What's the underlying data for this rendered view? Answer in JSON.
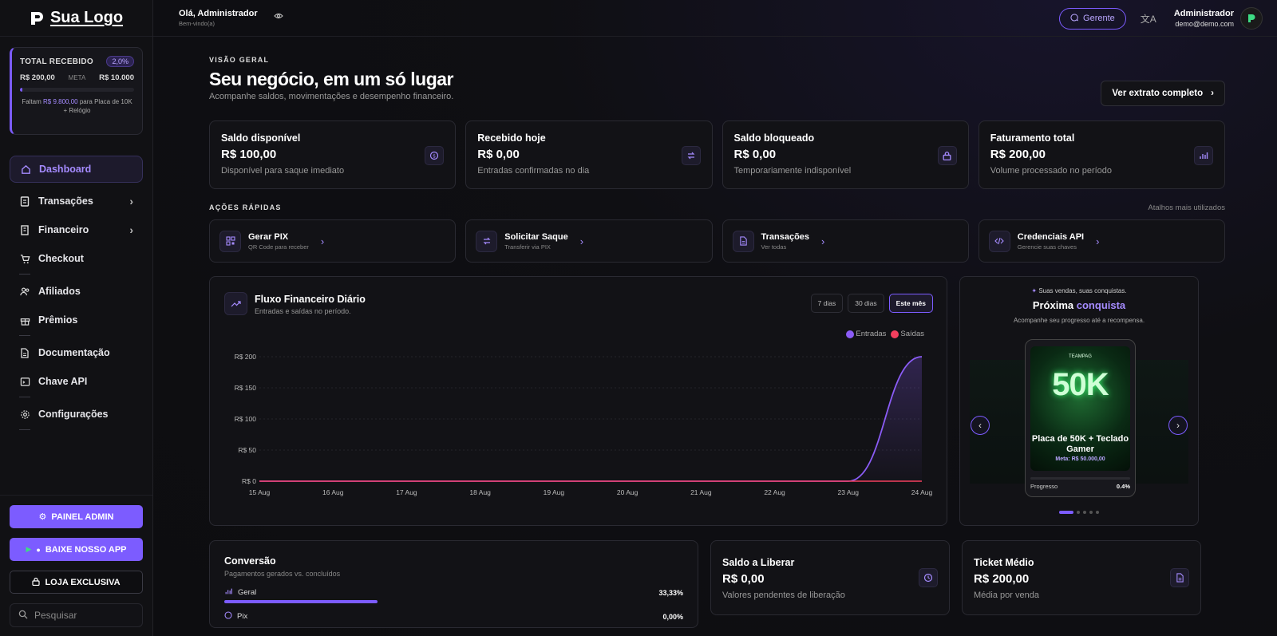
{
  "brand": {
    "logo_text": "Sua Logo"
  },
  "goal": {
    "title": "TOTAL RECEBIDO",
    "percent": "2,0%",
    "current": "R$ 200,00",
    "meta_label": "META",
    "target": "R$ 10.000",
    "progress_fraction": 0.02,
    "note_prefix": "Faltam",
    "note_amount": "R$ 9.800,00",
    "note_suffix": "para Placa de 10K + Relógio"
  },
  "nav": {
    "dashboard": "Dashboard",
    "transacoes": "Transações",
    "financeiro": "Financeiro",
    "checkout": "Checkout",
    "afiliados": "Afiliados",
    "premios": "Prêmios",
    "documentacao": "Documentação",
    "chave_api": "Chave API",
    "configuracoes": "Configurações"
  },
  "sidebar_buttons": {
    "painel_admin": "PAINEL ADMIN",
    "baixe_app": "BAIXE NOSSO APP",
    "loja": "LOJA EXCLUSIVA",
    "search_placeholder": "Pesquisar"
  },
  "topbar": {
    "greeting": "Olá, Administrador",
    "welcome": "Bem-vindo(a)",
    "gerente": "Gerente",
    "user_name": "Administrador",
    "user_email": "demo@demo.com"
  },
  "header": {
    "overline": "VISÃO GERAL",
    "title": "Seu negócio, em um só lugar",
    "subtitle": "Acompanhe saldos, movimentações e desempenho financeiro.",
    "extrato_button": "Ver extrato completo"
  },
  "stats": [
    {
      "title": "Saldo disponível",
      "value": "R$ 100,00",
      "sub": "Disponível para saque imediato",
      "icon": "dollar-icon"
    },
    {
      "title": "Recebido hoje",
      "value": "R$ 0,00",
      "sub": "Entradas confirmadas no dia",
      "icon": "arrows-icon"
    },
    {
      "title": "Saldo bloqueado",
      "value": "R$ 0,00",
      "sub": "Temporariamente indisponível",
      "icon": "lock-icon"
    },
    {
      "title": "Faturamento total",
      "value": "R$ 200,00",
      "sub": "Volume processado no período",
      "icon": "bar-chart-icon"
    }
  ],
  "quick_actions": {
    "title": "AÇÕES RÁPIDAS",
    "hint": "Atalhos mais utilizados",
    "items": [
      {
        "label": "Gerar PIX",
        "sub": "QR Code para receber",
        "icon": "qr-icon"
      },
      {
        "label": "Solicitar Saque",
        "sub": "Transferir via PIX",
        "icon": "arrows-icon"
      },
      {
        "label": "Transações",
        "sub": "Ver todas",
        "icon": "document-icon"
      },
      {
        "label": "Credenciais API",
        "sub": "Gerencie suas chaves",
        "icon": "code-icon"
      }
    ]
  },
  "flow_chart": {
    "title": "Fluxo Financeiro Diário",
    "subtitle": "Entradas e saídas no período.",
    "ranges": [
      "7 dias",
      "30 dias",
      "Este mês"
    ],
    "active_range": "Este mês"
  },
  "chart_data": {
    "type": "area",
    "x": [
      "15 Aug",
      "16 Aug",
      "17 Aug",
      "18 Aug",
      "19 Aug",
      "20 Aug",
      "21 Aug",
      "22 Aug",
      "23 Aug",
      "24 Aug"
    ],
    "series": [
      {
        "name": "Entradas",
        "color": "#8b5cf6",
        "values": [
          0,
          0,
          0,
          0,
          0,
          0,
          0,
          0,
          0,
          200
        ]
      },
      {
        "name": "Saídas",
        "color": "#f43f5e",
        "values": [
          0,
          0,
          0,
          0,
          0,
          0,
          0,
          0,
          0,
          0
        ]
      }
    ],
    "y_ticks": [
      "R$ 0",
      "R$ 50",
      "R$ 100",
      "R$ 150",
      "R$ 200"
    ],
    "ylim": [
      0,
      200
    ],
    "legend": "top-right",
    "grid": true
  },
  "promo": {
    "top": "Suas vendas, suas conquistas.",
    "title_a": "Próxima",
    "title_b": "conquista",
    "subtitle": "Acompanhe seu progresso até a recompensa.",
    "slide_brand": "TEAMPAG",
    "slide_big": "50K",
    "slide_name": "Placa de 50K + Teclado Gamer",
    "slide_meta": "Meta: R$ 50.000,00",
    "progress_label": "Progresso",
    "progress_value": "0.4%",
    "progress_fraction": 0.004,
    "dots": 5
  },
  "conversion": {
    "title": "Conversão",
    "subtitle": "Pagamentos gerados vs. concluídos",
    "rows": [
      {
        "label": "Geral",
        "value": "33,33%",
        "fraction": 0.3333
      },
      {
        "label": "Pix",
        "value": "0,00%",
        "fraction": 0
      }
    ]
  },
  "saldo_liberar": {
    "title": "Saldo a Liberar",
    "value": "R$ 0,00",
    "sub": "Valores pendentes de liberação"
  },
  "ticket": {
    "title": "Ticket Médio",
    "value": "R$ 200,00",
    "sub": "Média por venda"
  }
}
